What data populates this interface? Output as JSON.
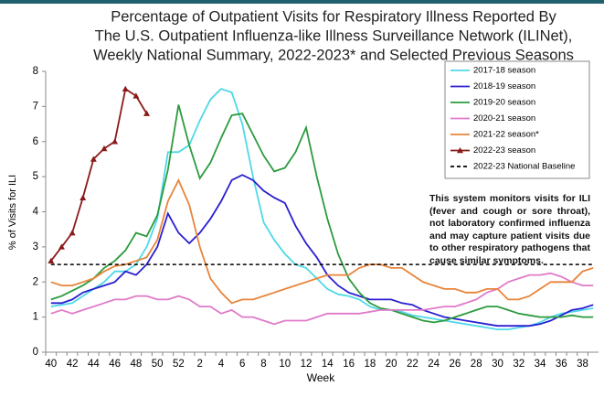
{
  "chart_data": {
    "type": "line",
    "title": [
      "Percentage of Outpatient Visits for Respiratory Illness Reported By",
      "The U.S. Outpatient Influenza-like Illness Surveillance Network (ILINet),",
      "Weekly National Summary, 2022-2023* and Selected Previous Seasons"
    ],
    "x_label": "Week",
    "y_label": "% of Visits for ILI",
    "annotation": "This system monitors visits for ILI (fever and cough or sore throat), not laboratory confirmed influenza and may capture patient visits due to other respiratory pathogens that cause similar symptoms.",
    "categories": [
      "40",
      null,
      "42",
      null,
      "44",
      null,
      "46",
      null,
      "48",
      null,
      "50",
      null,
      "52",
      null,
      "2",
      null,
      "4",
      null,
      "6",
      null,
      "8",
      null,
      "10",
      null,
      "12",
      null,
      "14",
      null,
      "16",
      null,
      "18",
      null,
      "20",
      null,
      "22",
      null,
      "24",
      null,
      "26",
      null,
      "28",
      null,
      "30",
      null,
      "32",
      null,
      "34",
      null,
      "36",
      null,
      "38",
      null
    ],
    "ylim": [
      0,
      8
    ],
    "yticks": [
      0,
      1,
      2,
      3,
      4,
      5,
      6,
      7,
      8
    ],
    "series": [
      {
        "name": "2017-18 season",
        "color": "#4fd8e8",
        "values": [
          1.3,
          1.35,
          1.4,
          1.6,
          1.8,
          2.0,
          2.3,
          2.3,
          2.5,
          3.0,
          3.8,
          5.7,
          5.7,
          5.9,
          6.6,
          7.2,
          7.5,
          7.4,
          6.5,
          5.0,
          3.7,
          3.2,
          2.8,
          2.5,
          2.4,
          2.1,
          1.8,
          1.65,
          1.6,
          1.5,
          1.3,
          1.2,
          1.2,
          1.15,
          1.05,
          1.0,
          0.95,
          0.9,
          0.85,
          0.8,
          0.75,
          0.7,
          0.65,
          0.65,
          0.7,
          0.75,
          0.85,
          1.0,
          1.1,
          1.15,
          1.2,
          1.25
        ]
      },
      {
        "name": "2018-19 season",
        "color": "#2a1ed0",
        "values": [
          1.4,
          1.4,
          1.5,
          1.7,
          1.8,
          1.9,
          2.0,
          2.3,
          2.2,
          2.5,
          3.0,
          3.95,
          3.4,
          3.1,
          3.4,
          3.8,
          4.3,
          4.9,
          5.05,
          4.9,
          4.6,
          4.4,
          4.25,
          3.6,
          3.1,
          2.7,
          2.2,
          1.9,
          1.7,
          1.6,
          1.5,
          1.5,
          1.5,
          1.4,
          1.35,
          1.2,
          1.1,
          1.0,
          0.95,
          0.9,
          0.85,
          0.8,
          0.75,
          0.75,
          0.75,
          0.75,
          0.8,
          0.9,
          1.05,
          1.2,
          1.25,
          1.35
        ]
      },
      {
        "name": "2019-20 season",
        "color": "#2b9b3d",
        "values": [
          1.5,
          1.6,
          1.75,
          1.9,
          2.1,
          2.4,
          2.6,
          2.9,
          3.4,
          3.3,
          3.9,
          5.2,
          7.05,
          5.9,
          4.95,
          5.4,
          6.1,
          6.75,
          6.8,
          6.2,
          5.6,
          5.15,
          5.25,
          5.7,
          6.4,
          5.0,
          3.8,
          2.8,
          2.1,
          1.7,
          1.4,
          1.25,
          1.2,
          1.1,
          1.0,
          0.9,
          0.85,
          0.9,
          1.0,
          1.1,
          1.2,
          1.3,
          1.3,
          1.2,
          1.1,
          1.05,
          1.0,
          1.0,
          1.0,
          1.05,
          1.0,
          1.0
        ]
      },
      {
        "name": "2020-21 season",
        "color": "#e07ac8",
        "values": [
          1.1,
          1.2,
          1.1,
          1.2,
          1.3,
          1.4,
          1.5,
          1.5,
          1.6,
          1.6,
          1.5,
          1.5,
          1.6,
          1.5,
          1.3,
          1.3,
          1.1,
          1.2,
          1.0,
          1.0,
          0.9,
          0.8,
          0.9,
          0.9,
          0.9,
          1.0,
          1.1,
          1.1,
          1.1,
          1.1,
          1.15,
          1.2,
          1.2,
          1.2,
          1.2,
          1.2,
          1.25,
          1.3,
          1.3,
          1.4,
          1.5,
          1.7,
          1.8,
          2.0,
          2.1,
          2.2,
          2.2,
          2.25,
          2.15,
          2.0,
          1.9,
          1.9
        ]
      },
      {
        "name": "2021-22 season*",
        "color": "#e8843a",
        "values": [
          2.0,
          1.9,
          1.9,
          2.0,
          2.1,
          2.3,
          2.45,
          2.5,
          2.6,
          2.7,
          3.2,
          4.3,
          4.9,
          4.2,
          3.0,
          2.1,
          1.7,
          1.4,
          1.5,
          1.5,
          1.6,
          1.7,
          1.8,
          1.9,
          2.0,
          2.1,
          2.2,
          2.2,
          2.2,
          2.4,
          2.5,
          2.5,
          2.4,
          2.4,
          2.2,
          2.0,
          1.9,
          1.8,
          1.8,
          1.7,
          1.7,
          1.8,
          1.8,
          1.5,
          1.5,
          1.6,
          1.8,
          2.0,
          2.0,
          2.0,
          2.3,
          2.4
        ]
      },
      {
        "name": "2022-23 season",
        "color": "#8b1a1a",
        "marker": "triangle",
        "values": [
          2.6,
          3.0,
          3.4,
          4.4,
          5.5,
          5.8,
          6.0,
          7.5,
          7.3,
          6.8,
          null,
          null,
          null,
          null,
          null,
          null,
          null,
          null,
          null,
          null,
          null,
          null,
          null,
          null,
          null,
          null,
          null,
          null,
          null,
          null,
          null,
          null,
          null,
          null,
          null,
          null,
          null,
          null,
          null,
          null,
          null,
          null,
          null,
          null,
          null,
          null,
          null,
          null,
          null,
          null,
          null,
          null
        ]
      },
      {
        "name": "2022-23 National Baseline",
        "color": "#000000",
        "dash": true,
        "values": [
          2.5,
          2.5,
          2.5,
          2.5,
          2.5,
          2.5,
          2.5,
          2.5,
          2.5,
          2.5,
          2.5,
          2.5,
          2.5,
          2.5,
          2.5,
          2.5,
          2.5,
          2.5,
          2.5,
          2.5,
          2.5,
          2.5,
          2.5,
          2.5,
          2.5,
          2.5,
          2.5,
          2.5,
          2.5,
          2.5,
          2.5,
          2.5,
          2.5,
          2.5,
          2.5,
          2.5,
          2.5,
          2.5,
          2.5,
          2.5,
          2.5,
          2.5,
          2.5,
          2.5,
          2.5,
          2.5,
          2.5,
          2.5,
          2.5,
          2.5,
          2.5,
          2.5
        ]
      }
    ]
  }
}
